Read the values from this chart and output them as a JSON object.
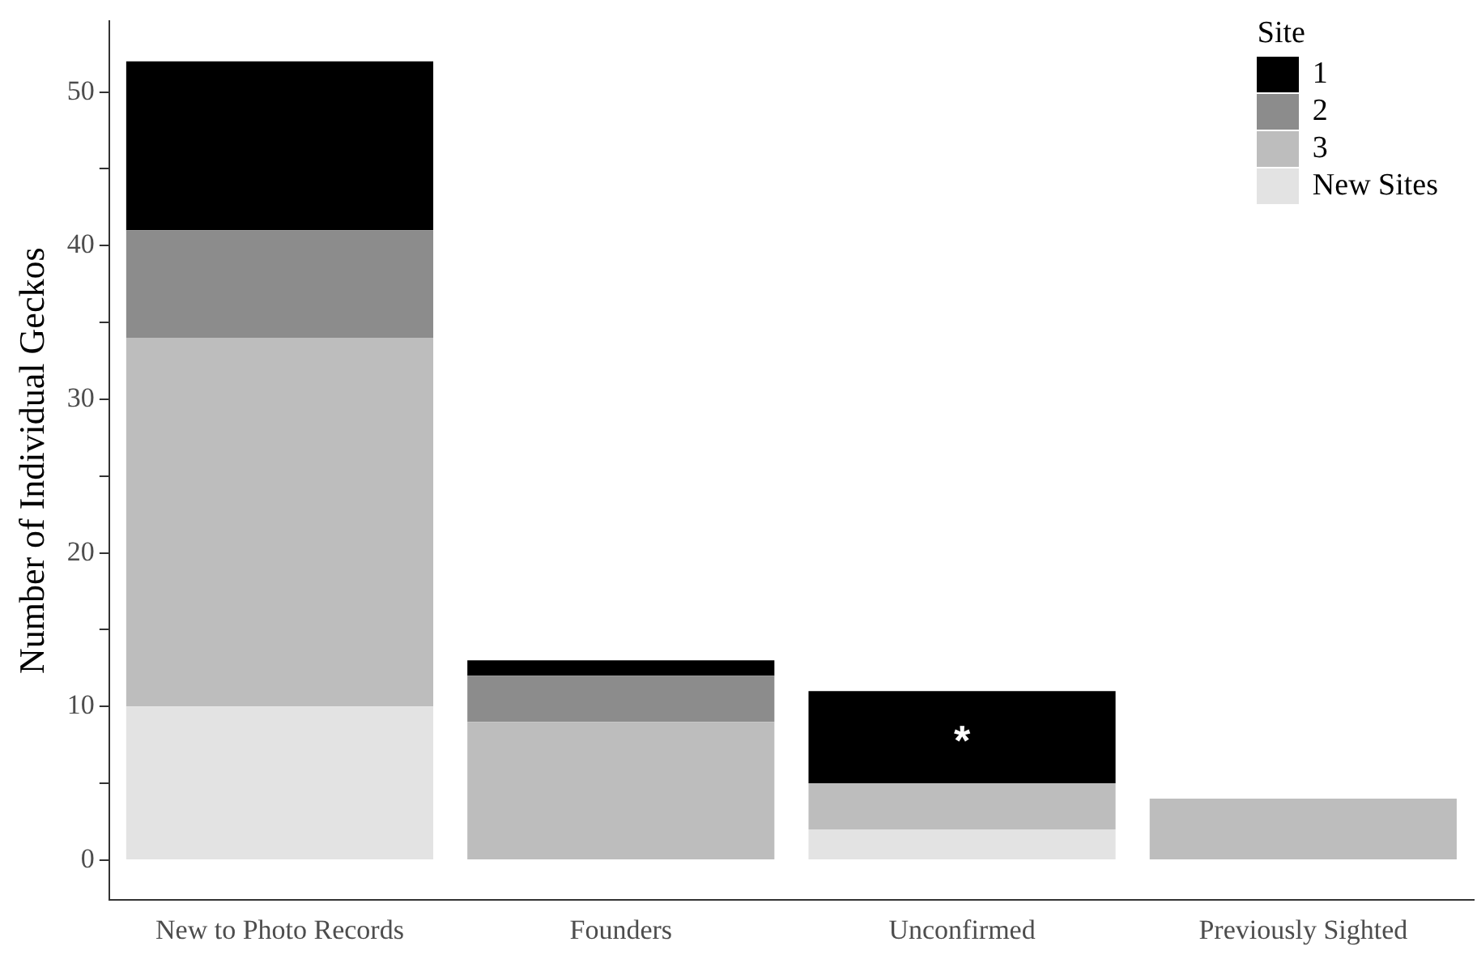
{
  "chart_data": {
    "type": "bar",
    "stacked": true,
    "ylabel": "Number of Individual Geckos",
    "legend_title": "Site",
    "legend": "top right",
    "grid": false,
    "categories": [
      "New to Photo Records",
      "Founders",
      "Unconfirmed",
      "Previously Sighted"
    ],
    "series": [
      {
        "name": "New Sites",
        "color": "#e3e3e3",
        "values": [
          10,
          0,
          2,
          0
        ]
      },
      {
        "name": "3",
        "color": "#bdbdbd",
        "values": [
          24,
          9,
          3,
          4
        ]
      },
      {
        "name": "2",
        "color": "#8c8c8c",
        "values": [
          7,
          3,
          0,
          0
        ]
      },
      {
        "name": "1",
        "color": "#000000",
        "values": [
          11,
          1,
          6,
          0
        ]
      }
    ],
    "ylim": [
      -2.6,
      54.6
    ],
    "yticks": [
      0,
      {
        "value": 5,
        "label": null
      },
      10,
      {
        "value": 15,
        "label": null
      },
      20,
      {
        "value": 25,
        "label": null
      },
      30,
      {
        "value": 35,
        "label": null
      },
      40,
      {
        "value": 45,
        "label": null
      },
      50
    ],
    "annotations": [
      {
        "text": "*",
        "x": "Unconfirmed",
        "y": 11
      }
    ]
  }
}
